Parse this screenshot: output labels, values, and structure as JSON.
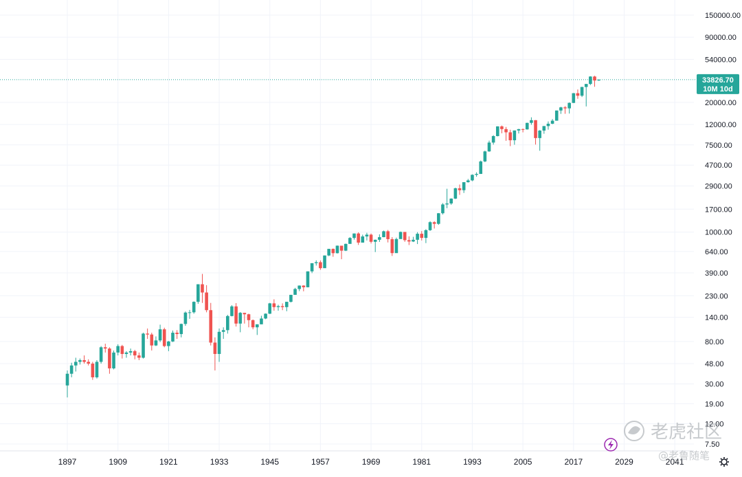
{
  "chart_data": {
    "type": "candlestick",
    "scale": "log",
    "grid": true,
    "x_ticks": [
      "1897",
      "1909",
      "1921",
      "1933",
      "1945",
      "1957",
      "1969",
      "1981",
      "1993",
      "2005",
      "2017",
      "2029",
      "2041"
    ],
    "x_tick_years": [
      1897,
      1909,
      1921,
      1933,
      1945,
      1957,
      1969,
      1981,
      1993,
      2005,
      2017,
      2029,
      2041
    ],
    "y_ticks": [
      "150000.00",
      "90000.00",
      "54000.00",
      "20000.00",
      "12000.00",
      "7500.00",
      "4700.00",
      "2900.00",
      "1700.00",
      "1000.00",
      "640.00",
      "390.00",
      "230.00",
      "140.00",
      "80.00",
      "48.00",
      "30.00",
      "19.00",
      "12.00",
      "7.50"
    ],
    "y_tick_values": [
      150000,
      90000,
      54000,
      20000,
      12000,
      7500,
      4700,
      2900,
      1700,
      1000,
      640,
      390,
      230,
      140,
      80,
      48,
      30,
      19,
      12,
      7.5
    ],
    "current_price": {
      "value": 33826.7,
      "label": "33826.70",
      "countdown": "10M 10d"
    },
    "colors": {
      "up": "#26a69a",
      "down": "#ef5350",
      "price_line": "#26a69a",
      "grid": "#f0f3fa",
      "alert_icon": "#9c27b0"
    },
    "candles": [
      [
        1897,
        29,
        41,
        22,
        38
      ],
      [
        1898,
        38,
        49,
        35,
        46
      ],
      [
        1899,
        46,
        55,
        40,
        50
      ],
      [
        1900,
        50,
        54,
        47,
        52
      ],
      [
        1901,
        52,
        58,
        48,
        50
      ],
      [
        1902,
        50,
        53,
        46,
        48
      ],
      [
        1903,
        48,
        50,
        33,
        35
      ],
      [
        1904,
        35,
        52,
        34,
        50
      ],
      [
        1905,
        50,
        72,
        48,
        70
      ],
      [
        1906,
        70,
        76,
        62,
        68
      ],
      [
        1907,
        68,
        70,
        38,
        43
      ],
      [
        1908,
        43,
        65,
        42,
        62
      ],
      [
        1909,
        62,
        75,
        58,
        72
      ],
      [
        1910,
        72,
        74,
        54,
        60
      ],
      [
        1911,
        60,
        64,
        55,
        62
      ],
      [
        1912,
        62,
        68,
        58,
        64
      ],
      [
        1913,
        64,
        66,
        53,
        58
      ],
      [
        1914,
        58,
        62,
        52,
        55
      ],
      [
        1915,
        55,
        98,
        54,
        96
      ],
      [
        1916,
        96,
        108,
        85,
        94
      ],
      [
        1917,
        94,
        98,
        65,
        73
      ],
      [
        1918,
        73,
        90,
        72,
        82
      ],
      [
        1919,
        82,
        118,
        79,
        106
      ],
      [
        1920,
        106,
        110,
        70,
        72
      ],
      [
        1921,
        72,
        81,
        64,
        80
      ],
      [
        1922,
        80,
        103,
        79,
        98
      ],
      [
        1923,
        98,
        104,
        85,
        95
      ],
      [
        1924,
        95,
        121,
        88,
        120
      ],
      [
        1925,
        120,
        160,
        115,
        156
      ],
      [
        1926,
        156,
        166,
        135,
        157
      ],
      [
        1927,
        157,
        202,
        152,
        200
      ],
      [
        1928,
        200,
        300,
        191,
        300
      ],
      [
        1929,
        300,
        381,
        195,
        248
      ],
      [
        1930,
        248,
        294,
        157,
        165
      ],
      [
        1931,
        165,
        195,
        73,
        78
      ],
      [
        1932,
        78,
        88,
        41,
        60
      ],
      [
        1933,
        60,
        108,
        50,
        100
      ],
      [
        1934,
        100,
        111,
        85,
        104
      ],
      [
        1935,
        104,
        148,
        96,
        144
      ],
      [
        1936,
        144,
        185,
        143,
        180
      ],
      [
        1937,
        180,
        194,
        113,
        121
      ],
      [
        1938,
        121,
        158,
        99,
        155
      ],
      [
        1939,
        155,
        155,
        121,
        150
      ],
      [
        1940,
        150,
        152,
        111,
        131
      ],
      [
        1941,
        131,
        133,
        106,
        111
      ],
      [
        1942,
        111,
        119,
        93,
        119
      ],
      [
        1943,
        119,
        145,
        119,
        136
      ],
      [
        1944,
        136,
        153,
        134,
        152
      ],
      [
        1945,
        152,
        195,
        151,
        193
      ],
      [
        1946,
        193,
        212,
        163,
        177
      ],
      [
        1947,
        177,
        187,
        163,
        181
      ],
      [
        1948,
        181,
        193,
        165,
        177
      ],
      [
        1949,
        177,
        200,
        161,
        200
      ],
      [
        1950,
        200,
        235,
        197,
        235
      ],
      [
        1951,
        235,
        276,
        239,
        269
      ],
      [
        1952,
        269,
        292,
        256,
        291
      ],
      [
        1953,
        291,
        293,
        255,
        280
      ],
      [
        1954,
        280,
        404,
        279,
        404
      ],
      [
        1955,
        404,
        488,
        388,
        488
      ],
      [
        1956,
        488,
        521,
        462,
        499
      ],
      [
        1957,
        499,
        520,
        419,
        435
      ],
      [
        1958,
        435,
        583,
        436,
        583
      ],
      [
        1959,
        583,
        679,
        574,
        679
      ],
      [
        1960,
        679,
        685,
        566,
        615
      ],
      [
        1961,
        615,
        734,
        610,
        731
      ],
      [
        1962,
        731,
        726,
        535,
        652
      ],
      [
        1963,
        652,
        767,
        646,
        762
      ],
      [
        1964,
        762,
        891,
        766,
        874
      ],
      [
        1965,
        874,
        969,
        840,
        969
      ],
      [
        1966,
        969,
        995,
        744,
        785
      ],
      [
        1967,
        785,
        943,
        786,
        905
      ],
      [
        1968,
        905,
        985,
        825,
        943
      ],
      [
        1969,
        943,
        968,
        769,
        800
      ],
      [
        1970,
        800,
        842,
        631,
        838
      ],
      [
        1971,
        838,
        950,
        797,
        890
      ],
      [
        1972,
        890,
        1036,
        889,
        1020
      ],
      [
        1973,
        1020,
        1051,
        788,
        850
      ],
      [
        1974,
        850,
        891,
        577,
        616
      ],
      [
        1975,
        616,
        881,
        632,
        852
      ],
      [
        1976,
        852,
        1014,
        858,
        1004
      ],
      [
        1977,
        1004,
        999,
        800,
        831
      ],
      [
        1978,
        831,
        907,
        742,
        805
      ],
      [
        1979,
        805,
        897,
        796,
        838
      ],
      [
        1980,
        838,
        1000,
        759,
        963
      ],
      [
        1981,
        963,
        1024,
        824,
        875
      ],
      [
        1982,
        875,
        1070,
        776,
        1046
      ],
      [
        1983,
        1046,
        1287,
        1027,
        1258
      ],
      [
        1984,
        1258,
        1286,
        1086,
        1211
      ],
      [
        1985,
        1211,
        1553,
        1184,
        1546
      ],
      [
        1986,
        1546,
        1955,
        1502,
        1895
      ],
      [
        1987,
        1895,
        2722,
        1738,
        1938
      ],
      [
        1988,
        1938,
        2183,
        1879,
        2168
      ],
      [
        1989,
        2168,
        2791,
        2144,
        2753
      ],
      [
        1990,
        2753,
        2999,
        2365,
        2633
      ],
      [
        1991,
        2633,
        3168,
        2470,
        3168
      ],
      [
        1992,
        3168,
        3413,
        3136,
        3301
      ],
      [
        1993,
        3301,
        3794,
        3241,
        3754
      ],
      [
        1994,
        3754,
        3978,
        3593,
        3834
      ],
      [
        1995,
        3834,
        5216,
        3832,
        5117
      ],
      [
        1996,
        5117,
        6560,
        5032,
        6448
      ],
      [
        1997,
        6448,
        8259,
        6391,
        7908
      ],
      [
        1998,
        7908,
        9374,
        7539,
        9181
      ],
      [
        1999,
        9181,
        11497,
        9120,
        11497
      ],
      [
        2000,
        11497,
        11722,
        9796,
        10787
      ],
      [
        2001,
        10787,
        11337,
        8236,
        10021
      ],
      [
        2002,
        10021,
        10635,
        7286,
        8341
      ],
      [
        2003,
        8341,
        10453,
        7524,
        10453
      ],
      [
        2004,
        10453,
        10854,
        9749,
        10783
      ],
      [
        2005,
        10783,
        10940,
        10012,
        10717
      ],
      [
        2006,
        10717,
        12510,
        10661,
        12463
      ],
      [
        2007,
        12463,
        14164,
        11939,
        13264
      ],
      [
        2008,
        13264,
        13279,
        7552,
        8776
      ],
      [
        2009,
        8776,
        10548,
        6547,
        10428
      ],
      [
        2010,
        10428,
        11585,
        9686,
        11577
      ],
      [
        2011,
        11577,
        12876,
        10655,
        12217
      ],
      [
        2012,
        12217,
        13610,
        12101,
        13104
      ],
      [
        2013,
        13104,
        16576,
        13104,
        16576
      ],
      [
        2014,
        16576,
        18053,
        15340,
        17823
      ],
      [
        2015,
        17823,
        18351,
        15370,
        17425
      ],
      [
        2016,
        17425,
        19987,
        15450,
        19762
      ],
      [
        2017,
        19762,
        24837,
        19677,
        24719
      ],
      [
        2018,
        24719,
        26951,
        21712,
        23327
      ],
      [
        2019,
        23327,
        28645,
        22638,
        28538
      ],
      [
        2020,
        28538,
        30606,
        18213,
        30606
      ],
      [
        2021,
        30606,
        36565,
        29856,
        36338
      ],
      [
        2022,
        36338,
        36952,
        28660,
        33147
      ],
      [
        2023,
        33147,
        33800,
        32900,
        33826.7
      ]
    ]
  },
  "watermark": {
    "brand": "老虎社区",
    "author": "@老鲁随笔"
  }
}
